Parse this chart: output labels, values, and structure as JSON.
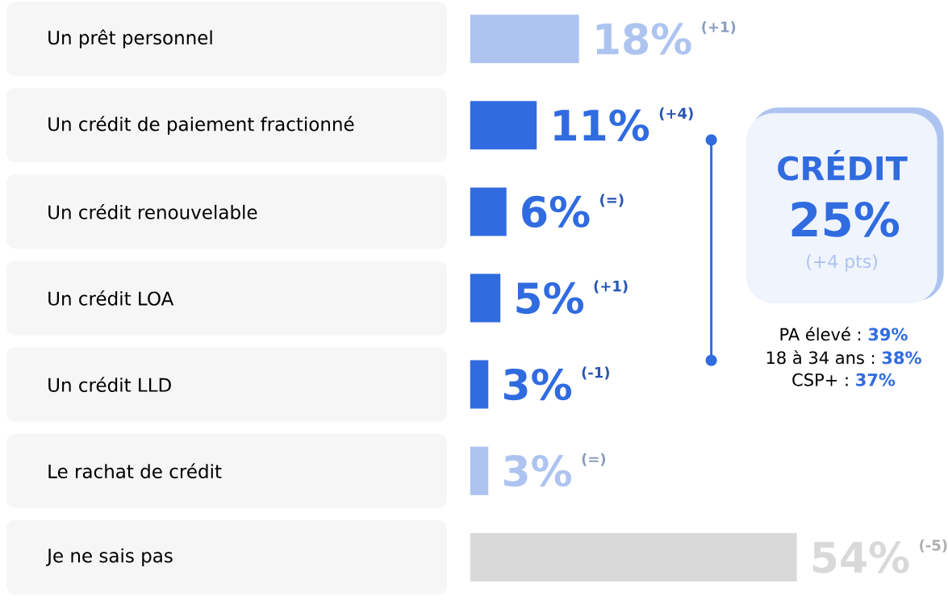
{
  "chart_data": {
    "type": "bar",
    "orientation": "horizontal",
    "categories": [
      "Un prêt personnel",
      "Un crédit de paiement fractionné",
      "Un crédit renouvelable",
      "Un crédit LOA",
      "Un crédit LLD",
      "Le rachat de crédit",
      "Je ne sais pas"
    ],
    "values": [
      18,
      11,
      6,
      5,
      3,
      3,
      54
    ],
    "colors": [
      "#adc4f0",
      "#306be0",
      "#306be0",
      "#306be0",
      "#306be0",
      "#adc4f0",
      "#d9d9d9"
    ],
    "value_labels": [
      "18%",
      "11%",
      "6%",
      "5%",
      "3%",
      "3%",
      "54%"
    ],
    "annotations": [
      "(+1)",
      "(+4)",
      "(=)",
      "(+1)",
      "(-1)",
      "(=)",
      "(-5)",
      "CRÉDIT",
      "25%",
      "(+4 pts)",
      "PA élevé :",
      "39%",
      "18 à 34 ans :",
      "38%",
      "CSP+ :",
      "37%"
    ]
  }
}
